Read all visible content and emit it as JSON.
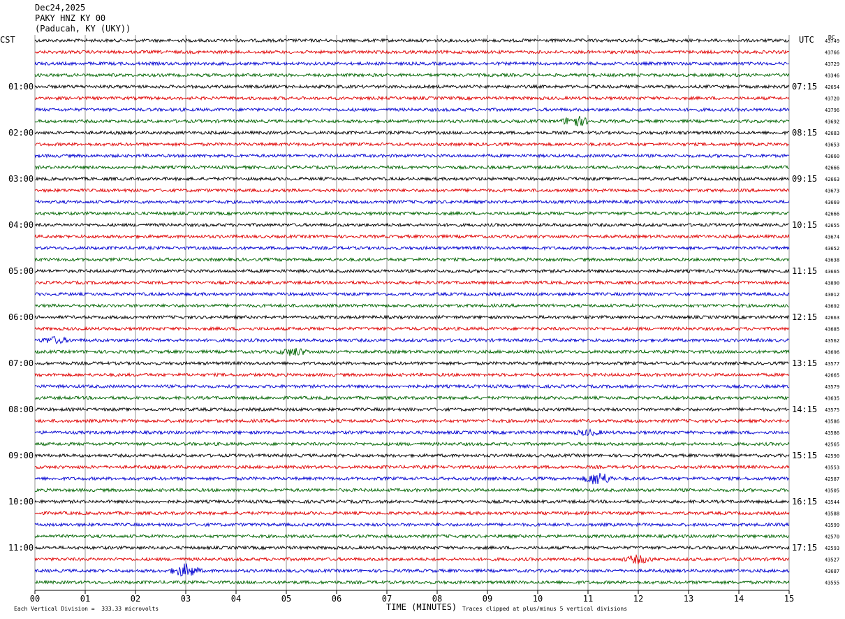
{
  "header": {
    "date": "Dec24,2025",
    "station": "PAKY HNZ KY 00",
    "location": "(Paducah, KY (UKY))"
  },
  "axes": {
    "left_tz": "CST",
    "right_tz": "UTC",
    "dc_label": "DC",
    "xlabel": "TIME (MINUTES)",
    "footer_left": "Each Vertical Division =  333.33 microvolts",
    "footer_right": "Traces clipped at plus/minus 5 vertical divisions"
  },
  "chart_data": {
    "type": "line",
    "title": "PAKY HNZ KY 00",
    "xlabel": "TIME (MINUTES)",
    "x_ticks": [
      "00",
      "01",
      "02",
      "03",
      "04",
      "05",
      "06",
      "07",
      "08",
      "09",
      "10",
      "11",
      "12",
      "13",
      "14",
      "15"
    ],
    "xlim": [
      0,
      15
    ],
    "trace_colors": [
      "#000000",
      "#e00000",
      "#0000d0",
      "#006400"
    ],
    "num_traces": 48,
    "cst_hour_labels": [
      "01:00",
      "02:00",
      "03:00",
      "04:00",
      "05:00",
      "06:00",
      "07:00",
      "08:00",
      "09:00",
      "10:00",
      "11:00"
    ],
    "utc_hour_labels": [
      "07:15",
      "08:15",
      "09:15",
      "10:15",
      "11:15",
      "12:15",
      "13:15",
      "14:15",
      "15:15",
      "16:15",
      "17:15"
    ],
    "dc_offsets": [
      43749,
      43766,
      43729,
      43346,
      42654,
      43720,
      43796,
      43692,
      42683,
      43653,
      43660,
      42666,
      42663,
      43673,
      43669,
      42666,
      42655,
      43674,
      43652,
      43638,
      43665,
      43890,
      43012,
      43692,
      42663,
      43685,
      43562,
      43696,
      43577,
      42665,
      43579,
      43635,
      43575,
      43586,
      43586,
      42565,
      42590,
      43553,
      42587,
      43505,
      43544,
      43588,
      43599,
      42570,
      42593,
      43527,
      43687,
      43555
    ],
    "events": [
      {
        "trace": 7,
        "minute": 10.75,
        "amp": 2.2
      },
      {
        "trace": 26,
        "minute": 0.4,
        "amp": 1.3
      },
      {
        "trace": 27,
        "minute": 5.15,
        "amp": 1.6
      },
      {
        "trace": 34,
        "minute": 11.0,
        "amp": 1.0
      },
      {
        "trace": 38,
        "minute": 11.2,
        "amp": 2.8
      },
      {
        "trace": 45,
        "minute": 12.0,
        "amp": 1.6
      },
      {
        "trace": 46,
        "minute": 3.0,
        "amp": 2.8
      }
    ]
  }
}
